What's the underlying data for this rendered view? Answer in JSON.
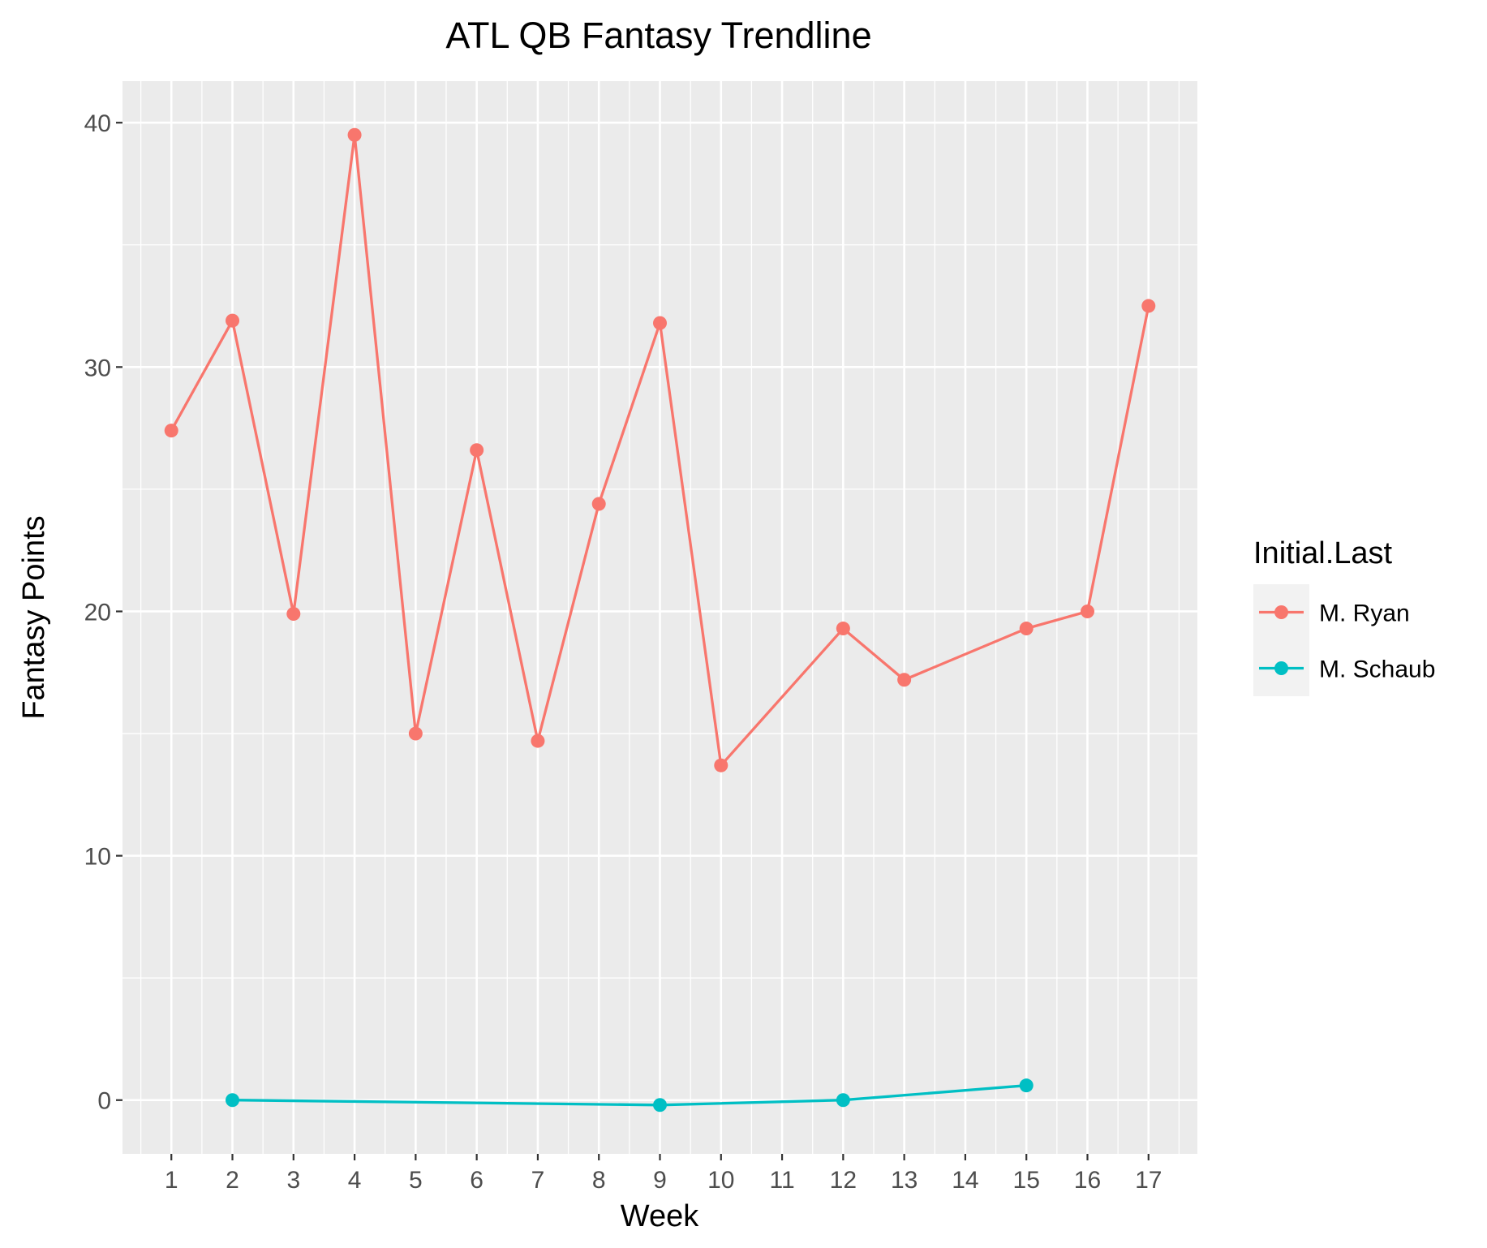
{
  "chart_data": {
    "type": "line",
    "title": "ATL QB Fantasy Trendline",
    "xlabel": "Week",
    "ylabel": "Fantasy Points",
    "x_ticks": [
      1,
      2,
      3,
      4,
      5,
      6,
      7,
      8,
      9,
      10,
      11,
      12,
      13,
      14,
      15,
      16,
      17
    ],
    "y_ticks": [
      0,
      10,
      20,
      30,
      40
    ],
    "xlim": [
      0.2,
      17.8
    ],
    "ylim": [
      -2.2,
      41.7
    ],
    "grid": true,
    "legend": {
      "title": "Initial.Last",
      "placement": "right"
    },
    "series": [
      {
        "name": "M. Ryan",
        "color": "#F8766D",
        "points": [
          {
            "x": 1,
            "y": 27.4
          },
          {
            "x": 2,
            "y": 31.9
          },
          {
            "x": 3,
            "y": 19.9
          },
          {
            "x": 4,
            "y": 39.5
          },
          {
            "x": 5,
            "y": 15.0
          },
          {
            "x": 6,
            "y": 26.6
          },
          {
            "x": 7,
            "y": 14.7
          },
          {
            "x": 8,
            "y": 24.4
          },
          {
            "x": 9,
            "y": 31.8
          },
          {
            "x": 10,
            "y": 13.7
          },
          {
            "x": 12,
            "y": 19.3
          },
          {
            "x": 13,
            "y": 17.2
          },
          {
            "x": 15,
            "y": 19.3
          },
          {
            "x": 16,
            "y": 20.0
          },
          {
            "x": 17,
            "y": 32.5
          }
        ]
      },
      {
        "name": "M. Schaub",
        "color": "#00BFC4",
        "points": [
          {
            "x": 2,
            "y": 0.0
          },
          {
            "x": 9,
            "y": -0.2
          },
          {
            "x": 12,
            "y": 0.0
          },
          {
            "x": 15,
            "y": 0.6
          }
        ]
      }
    ]
  }
}
